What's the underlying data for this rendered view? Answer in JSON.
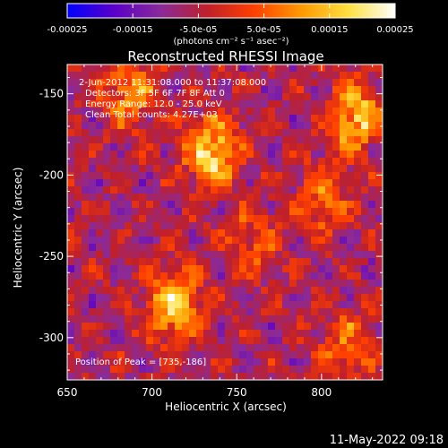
{
  "colorbar": {
    "tick_labels": [
      "-0.00025",
      "-0.00015",
      "-5.0e-05",
      "5.0e-05",
      "0.00015",
      "0.00025"
    ],
    "unit_label": "(photons cm⁻² s⁻¹ asec⁻²)",
    "range": [
      -0.00025,
      0.00025
    ],
    "colormap": [
      "#0000ff",
      "#5a00c8",
      "#8a2a9a",
      "#c0202a",
      "#ff4000",
      "#ff9a00",
      "#ffe040",
      "#ffffff"
    ]
  },
  "chart_data": {
    "type": "heatmap",
    "title": "Reconstructed RHESSI Image",
    "xlabel": "Heliocentric X (arcsec)",
    "ylabel": "Heliocentric Y (arcsec)",
    "xlim": [
      650,
      836
    ],
    "ylim": [
      -326,
      -132
    ],
    "xticks": [
      650,
      700,
      750,
      800
    ],
    "yticks": [
      -150,
      -200,
      -250,
      -300
    ],
    "x_tick_labels": [
      "650",
      "700",
      "750",
      "800"
    ],
    "y_tick_labels": [
      "-150",
      "-200",
      "-250",
      "-300"
    ],
    "annotations": [
      "2-Jun-2012 11:31:08.000 to 11:37:08.000",
      "Detectors: 3F 5F 6F 7F 8F   Att 0",
      "Energy Range: 12.0 - 25.0 keV",
      "Clean      Total counts: 4.27E+03"
    ],
    "peak_label": "Position of Peak = [735,-186]",
    "peak": [
      735,
      -186
    ],
    "bright_sources": [
      {
        "x": 713,
        "y": -280,
        "value": 0.00025
      },
      {
        "x": 735,
        "y": -186,
        "value": 0.00025
      },
      {
        "x": 820,
        "y": -165,
        "value": 0.00022
      },
      {
        "x": 686,
        "y": -150,
        "value": 0.00016
      },
      {
        "x": 800,
        "y": -215,
        "value": 0.00012
      },
      {
        "x": 815,
        "y": -305,
        "value": 0.00012
      },
      {
        "x": 760,
        "y": -240,
        "value": 0.0001
      }
    ]
  },
  "footer": {
    "timestamp": "11-May-2022 09:18"
  }
}
